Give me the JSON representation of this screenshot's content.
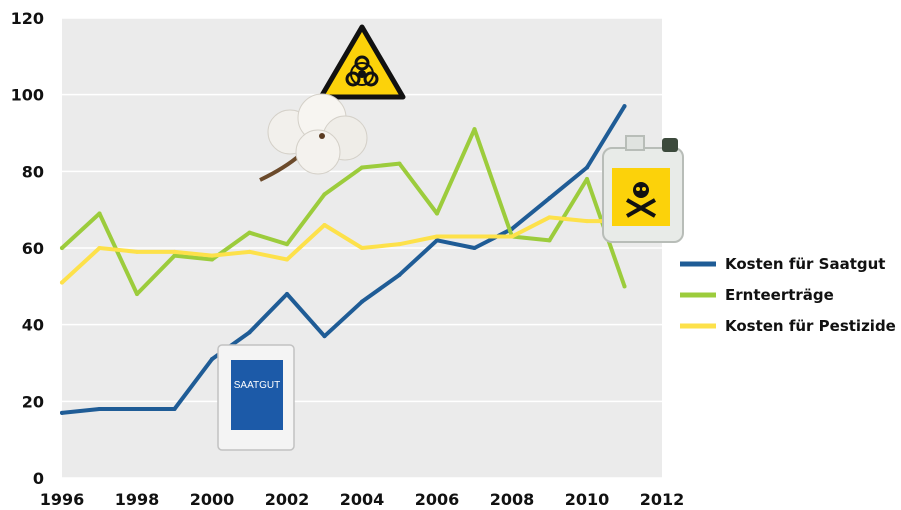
{
  "chart_data": {
    "type": "line",
    "x": [
      1996,
      1997,
      1998,
      1999,
      2000,
      2001,
      2002,
      2003,
      2004,
      2005,
      2006,
      2007,
      2008,
      2009,
      2010,
      2011
    ],
    "series": [
      {
        "name": "Kosten für Saatgut",
        "color": "#1f5c96",
        "values": [
          17,
          18,
          18,
          18,
          31,
          38,
          48,
          37,
          46,
          53,
          62,
          60,
          65,
          73,
          81,
          97
        ]
      },
      {
        "name": "Ernteerträge",
        "color": "#9ccc3c",
        "values": [
          60,
          69,
          48,
          58,
          57,
          64,
          61,
          74,
          81,
          82,
          69,
          91,
          63,
          62,
          78,
          50
        ]
      },
      {
        "name": "Kosten für Pestizide",
        "color": "#fde14a",
        "values": [
          51,
          60,
          59,
          59,
          58,
          59,
          57,
          66,
          60,
          61,
          63,
          63,
          63,
          68,
          67,
          67
        ]
      }
    ],
    "xlim": [
      1996,
      2012
    ],
    "ylim": [
      0,
      120
    ],
    "xticks": [
      "1996",
      "1998",
      "2000",
      "2002",
      "2004",
      "2006",
      "2008",
      "2010",
      "2012"
    ],
    "yticks": [
      "0",
      "20",
      "40",
      "60",
      "80",
      "100",
      "120"
    ],
    "grid": true,
    "legend_position": "right",
    "title": "",
    "xlabel": "",
    "ylabel": ""
  },
  "illustrations": {
    "seed_bag_label": "SAATGUT",
    "icons": [
      "biohazard-icon",
      "cotton-boll-icon",
      "pesticide-canister-icon",
      "seed-bag-icon"
    ]
  }
}
